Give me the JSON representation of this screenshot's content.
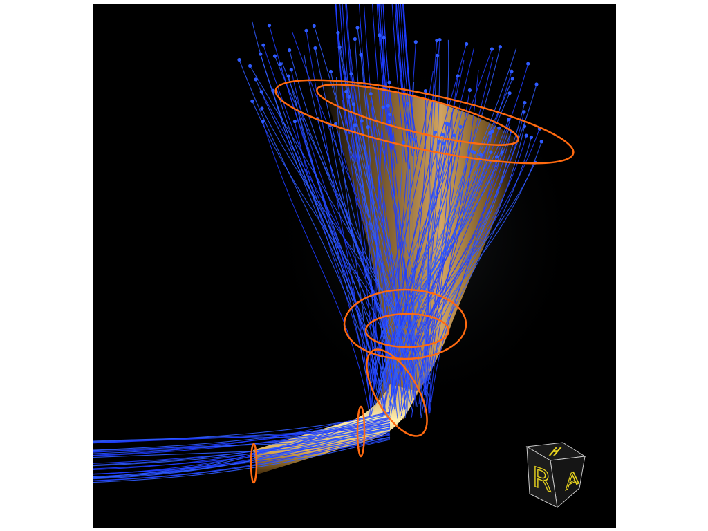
{
  "viewer": {
    "background_color": "#000000",
    "page_background": "#ffffff"
  },
  "scene": {
    "streamline_color": "#1e3cff",
    "streamline_highlight": "#2f5bff",
    "surface_color": "#f0b050",
    "surface_highlight": "#ffe6a0",
    "ring_color": "#ff6a10"
  },
  "orientation_cube": {
    "front_label": "R",
    "top_label": "H",
    "side_label": "A",
    "face_color": "#1a1a1a",
    "edge_color": "#c9c9c9",
    "label_color": "#e6d21f"
  }
}
